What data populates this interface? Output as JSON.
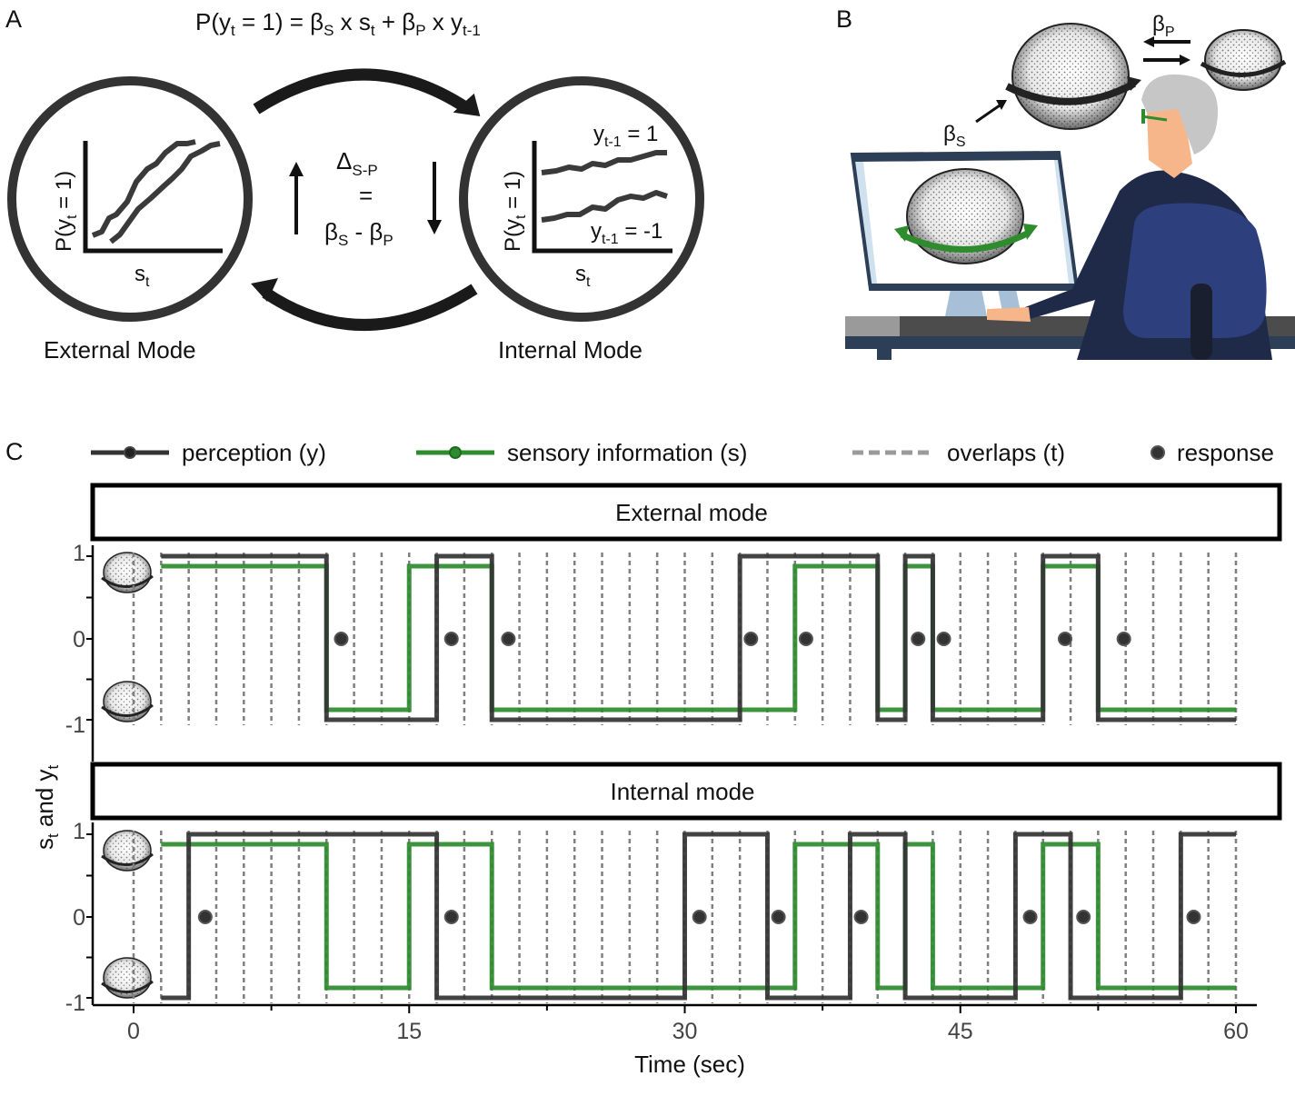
{
  "panel_a": {
    "letter": "A",
    "equation": {
      "p": "P(y",
      "sub_t": "t",
      "eq": " = 1) = β",
      "sub_s": "S",
      "x1": " x s",
      "sub_t2": "t",
      "plus": " + β",
      "sub_p": "P",
      "x2": " x y",
      "sub_t1": "t-1"
    },
    "left_circle": {
      "ylabel": "P(y",
      "ylabel_sub": "t",
      "ylabel_end": " = 1)",
      "xlabel": "s",
      "xlabel_sub": "t",
      "caption": "External Mode"
    },
    "right_circle": {
      "ylabel": "P(y",
      "ylabel_sub": "t",
      "ylabel_end": " = 1)",
      "xlabel": "s",
      "xlabel_sub": "t",
      "caption": "Internal  Mode",
      "curve_top": "y",
      "curve_top_sub": "t-1",
      "curve_top_val": " = 1",
      "curve_bot": "y",
      "curve_bot_sub": "t-1",
      "curve_bot_val": " = -1"
    },
    "delta": {
      "d": "Δ",
      "d_sub": "S-P",
      "eq": "=",
      "b1": "β",
      "b1_sub": "S",
      "minus": " - β",
      "b2_sub": "P"
    }
  },
  "panel_b": {
    "letter": "B",
    "beta_s": "β",
    "beta_s_sub": "S",
    "beta_p": "β",
    "beta_p_sub": "P"
  },
  "panel_c": {
    "letter": "C",
    "legend": [
      {
        "label": "perception (y)",
        "color": "#333333",
        "icon": "line-with-dot"
      },
      {
        "label": "sensory information (s)",
        "color": "#2e8b2e",
        "icon": "line-with-dot"
      },
      {
        "label": "overlaps (t)",
        "color": "#9a9a9a",
        "icon": "dashed-line"
      },
      {
        "label": "response",
        "color": "#333333",
        "icon": "dot"
      }
    ],
    "ylabel": "s",
    "ylabel_sub": "t",
    "ylabel_mid": " and y",
    "ylabel_sub2": "t",
    "xlabel": "Time (sec)"
  },
  "chart_data": {
    "type": "line",
    "xlabel": "Time (sec)",
    "ylabel": "st and yt",
    "xlim": [
      0,
      60
    ],
    "ylim": [
      -1,
      1
    ],
    "x_ticks": [
      "0",
      "15",
      "30",
      "45",
      "60"
    ],
    "y_ticks": [
      "1",
      "0",
      "-1"
    ],
    "overlap_times": [
      0,
      1.5,
      3,
      4.5,
      6,
      7.5,
      9,
      10.5,
      12,
      13.5,
      15,
      16.5,
      18,
      19.5,
      21,
      22.5,
      24,
      25.5,
      27,
      28.5,
      30,
      31.5,
      33,
      34.5,
      36,
      37.5,
      39,
      40.5,
      42,
      43.5,
      45,
      46.5,
      48,
      49.5,
      51,
      52.5,
      54,
      55.5,
      57,
      58.5,
      60
    ],
    "panels": [
      {
        "title": "External mode",
        "perception": [
          [
            1.5,
            1
          ],
          [
            10.5,
            -1
          ],
          [
            16.5,
            1
          ],
          [
            19.5,
            -1
          ],
          [
            33,
            1
          ],
          [
            40.5,
            -1
          ],
          [
            42,
            1
          ],
          [
            43.5,
            -1
          ],
          [
            49.5,
            1
          ],
          [
            52.5,
            -1
          ],
          [
            60,
            -1
          ]
        ],
        "sensory": [
          [
            1.5,
            1
          ],
          [
            10.5,
            -1
          ],
          [
            15,
            1
          ],
          [
            19.5,
            -1
          ],
          [
            36,
            1
          ],
          [
            40.5,
            -1
          ],
          [
            42,
            1
          ],
          [
            43.5,
            -1
          ],
          [
            49.5,
            1
          ],
          [
            52.5,
            -1
          ],
          [
            60,
            -1
          ]
        ],
        "responses": [
          11.3,
          17.3,
          20.4,
          33.6,
          36.6,
          42.7,
          44.1,
          50.7,
          53.9
        ]
      },
      {
        "title": "Internal mode",
        "perception": [
          [
            1.5,
            -1
          ],
          [
            3,
            1
          ],
          [
            16.5,
            -1
          ],
          [
            30,
            1
          ],
          [
            34.5,
            -1
          ],
          [
            39,
            1
          ],
          [
            42,
            -1
          ],
          [
            48,
            1
          ],
          [
            51,
            -1
          ],
          [
            57,
            1
          ],
          [
            60,
            1
          ]
        ],
        "sensory": [
          [
            1.5,
            1
          ],
          [
            10.5,
            -1
          ],
          [
            15,
            1
          ],
          [
            19.5,
            -1
          ],
          [
            36,
            1
          ],
          [
            40.5,
            -1
          ],
          [
            42,
            1
          ],
          [
            43.5,
            -1
          ],
          [
            49.5,
            1
          ],
          [
            52.5,
            -1
          ],
          [
            60,
            -1
          ]
        ],
        "responses": [
          3.9,
          17.3,
          30.8,
          35.1,
          39.6,
          48.8,
          51.7,
          57.7
        ]
      }
    ]
  }
}
